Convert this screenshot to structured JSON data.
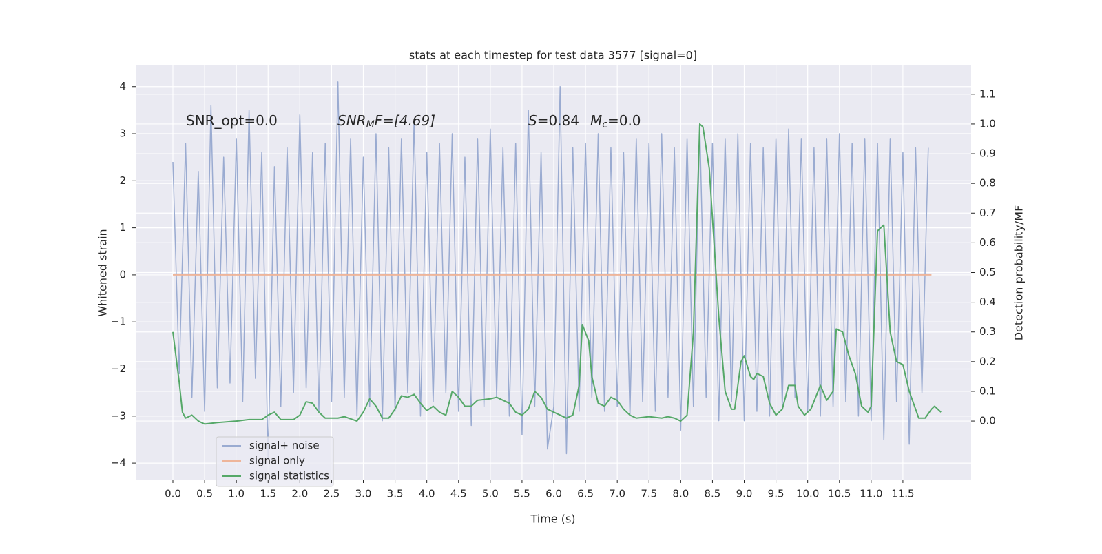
{
  "chart_data": {
    "type": "line",
    "title": "stats at each timestep for test data 3577 [signal=0]",
    "xlabel": "Time (s)",
    "ylabel": "Whitened strain",
    "y2label": "Detection probability/MF",
    "annotations": [
      [
        "SNR_opt=0.0"
      ],
      [
        "SNR",
        "M",
        "F=[4.69]"
      ],
      [
        "S",
        "=0.84",
        "M",
        "c",
        "=0.0"
      ]
    ],
    "xlim": [
      -0.586,
      12.575
    ],
    "ylim": [
      -4.35,
      4.45
    ],
    "y2lim": [
      -0.197,
      1.197
    ],
    "xticks": [
      {
        "value": 0,
        "label": "0.0"
      },
      {
        "value": 0.5,
        "label": "0.5"
      },
      {
        "value": 1,
        "label": "1.0"
      },
      {
        "value": 1.5,
        "label": "1.5"
      },
      {
        "value": 2,
        "label": "2.0"
      },
      {
        "value": 2.5,
        "label": "2.5"
      },
      {
        "value": 3,
        "label": "3.0"
      },
      {
        "value": 3.5,
        "label": "3.5"
      },
      {
        "value": 4,
        "label": "4.0"
      },
      {
        "value": 4.5,
        "label": "4.5"
      },
      {
        "value": 5,
        "label": "5.0"
      },
      {
        "value": 5.5,
        "label": "5.5"
      },
      {
        "value": 6,
        "label": "6.0"
      },
      {
        "value": 6.5,
        "label": "6.5"
      },
      {
        "value": 7,
        "label": "7.0"
      },
      {
        "value": 7.5,
        "label": "7.5"
      },
      {
        "value": 8,
        "label": "8.0"
      },
      {
        "value": 8.5,
        "label": "8.5"
      },
      {
        "value": 9,
        "label": "9.0"
      },
      {
        "value": 9.5,
        "label": "9.5"
      },
      {
        "value": 10,
        "label": "10.0"
      },
      {
        "value": 10.5,
        "label": "10.5"
      },
      {
        "value": 11,
        "label": "11.0"
      },
      {
        "value": 11.5,
        "label": "11.5"
      }
    ],
    "yticks": [
      {
        "value": -4,
        "label": "−4"
      },
      {
        "value": -3,
        "label": "−3"
      },
      {
        "value": -2,
        "label": "−2"
      },
      {
        "value": -1,
        "label": "−1"
      },
      0,
      1,
      2,
      3,
      4
    ],
    "y2ticks": [
      {
        "value": 0,
        "label": "0.0"
      },
      {
        "value": 0.1,
        "label": "0.1"
      },
      {
        "value": 0.2,
        "label": "0.2"
      },
      {
        "value": 0.3,
        "label": "0.3"
      },
      {
        "value": 0.4,
        "label": "0.4"
      },
      {
        "value": 0.5,
        "label": "0.5"
      },
      {
        "value": 0.6,
        "label": "0.6"
      },
      {
        "value": 0.7,
        "label": "0.7"
      },
      {
        "value": 0.8,
        "label": "0.8"
      },
      {
        "value": 0.9,
        "label": "0.9"
      },
      {
        "value": 1,
        "label": "1.0"
      },
      {
        "value": 1.1,
        "label": "1.1"
      }
    ],
    "grid": true,
    "legend": "lower left",
    "series": [
      {
        "name": "signal+ noise",
        "color": "#9aabd1",
        "x": [
          0,
          0.1,
          0.2,
          0.3,
          0.4,
          0.5,
          0.6,
          0.7,
          0.8,
          0.9,
          1,
          1.1,
          1.2,
          1.3,
          1.4,
          1.5,
          1.6,
          1.7,
          1.8,
          1.9,
          2,
          2.1,
          2.2,
          2.3,
          2.4,
          2.5,
          2.6,
          2.7,
          2.8,
          2.9,
          3,
          3.1,
          3.2,
          3.3,
          3.4,
          3.5,
          3.6,
          3.7,
          3.8,
          3.9,
          4,
          4.1,
          4.2,
          4.3,
          4.4,
          4.5,
          4.6,
          4.7,
          4.8,
          4.9,
          5,
          5.1,
          5.2,
          5.3,
          5.4,
          5.5,
          5.6,
          5.7,
          5.8,
          5.9,
          6,
          6.1,
          6.2,
          6.3,
          6.4,
          6.5,
          6.6,
          6.7,
          6.8,
          6.9,
          7,
          7.1,
          7.2,
          7.3,
          7.4,
          7.5,
          7.6,
          7.7,
          7.8,
          7.9,
          8,
          8.1,
          8.2,
          8.3,
          8.4,
          8.5,
          8.6,
          8.7,
          8.8,
          8.9,
          9,
          9.1,
          9.2,
          9.3,
          9.4,
          9.5,
          9.6,
          9.7,
          9.8,
          9.9,
          10,
          10.1,
          10.2,
          10.3,
          10.4,
          10.5,
          10.6,
          10.7,
          10.8,
          10.9,
          11,
          11.1,
          11.2,
          11.3,
          11.4,
          11.5,
          11.6,
          11.7,
          11.8,
          11.9
        ],
        "values": [
          2.4,
          -2.1,
          2.8,
          -2.6,
          2.2,
          -2.9,
          3.6,
          -2.4,
          2.5,
          -2.3,
          2.9,
          -2.7,
          3.5,
          -2.2,
          2.6,
          -3.9,
          2.3,
          -2.8,
          2.7,
          -2.5,
          3.4,
          -2.4,
          2.6,
          -2.9,
          2.8,
          -2.7,
          4.1,
          -2.6,
          2.9,
          -3.0,
          2.5,
          -2.8,
          3.0,
          -3.1,
          2.7,
          -2.9,
          2.9,
          -2.5,
          3.3,
          -3.0,
          2.6,
          -2.7,
          2.8,
          -2.5,
          3.0,
          -2.9,
          2.5,
          -3.2,
          2.9,
          -2.8,
          3.1,
          -2.6,
          2.7,
          -3.0,
          2.8,
          -3.4,
          3.5,
          -2.8,
          2.6,
          -3.7,
          -2.8,
          4.0,
          -3.8,
          2.7,
          -2.9,
          2.8,
          -2.6,
          3.0,
          -2.9,
          2.7,
          -2.8,
          2.6,
          -3.0,
          2.9,
          -2.7,
          2.8,
          -2.9,
          3.0,
          -2.6,
          2.7,
          -3.3,
          2.9,
          -2.8,
          3.2,
          -2.6,
          2.8,
          -3.1,
          2.9,
          -2.7,
          3.0,
          -3.1,
          2.8,
          -2.9,
          2.7,
          -3.0,
          2.9,
          -2.8,
          3.1,
          -2.6,
          2.9,
          -2.9,
          2.7,
          -3.0,
          2.9,
          -2.8,
          3.0,
          -2.7,
          2.8,
          -3.0,
          2.9,
          -3.1,
          2.8,
          -3.5,
          2.9,
          -2.7,
          2.6,
          -3.6,
          2.7,
          -2.5,
          2.7
        ]
      },
      {
        "name": "signal only",
        "color": "#eeb59a",
        "x": [
          0,
          11.95
        ],
        "values": [
          0,
          0
        ]
      },
      {
        "name": "signal statistics",
        "color": "#55a868",
        "axis": "y2",
        "x": [
          0,
          0.1,
          0.15,
          0.2,
          0.3,
          0.4,
          0.5,
          0.7,
          1.0,
          1.2,
          1.4,
          1.5,
          1.6,
          1.7,
          1.9,
          2.0,
          2.1,
          2.2,
          2.3,
          2.4,
          2.6,
          2.7,
          2.9,
          3.0,
          3.1,
          3.2,
          3.3,
          3.4,
          3.5,
          3.6,
          3.7,
          3.8,
          3.9,
          4.0,
          4.1,
          4.2,
          4.3,
          4.4,
          4.5,
          4.6,
          4.7,
          4.8,
          5.0,
          5.1,
          5.3,
          5.4,
          5.5,
          5.6,
          5.7,
          5.8,
          5.9,
          6.0,
          6.1,
          6.2,
          6.3,
          6.4,
          6.45,
          6.55,
          6.6,
          6.7,
          6.8,
          6.9,
          7.0,
          7.1,
          7.2,
          7.3,
          7.5,
          7.7,
          7.8,
          7.9,
          8.0,
          8.1,
          8.2,
          8.3,
          8.35,
          8.45,
          8.6,
          8.7,
          8.8,
          8.85,
          8.95,
          9.0,
          9.1,
          9.15,
          9.2,
          9.3,
          9.4,
          9.5,
          9.6,
          9.7,
          9.8,
          9.85,
          9.95,
          10.05,
          10.2,
          10.3,
          10.4,
          10.45,
          10.55,
          10.65,
          10.75,
          10.85,
          10.95,
          11.0,
          11.1,
          11.2,
          11.3,
          11.4,
          11.5,
          11.6,
          11.7,
          11.75,
          11.85,
          11.95,
          12.0,
          12.1
        ],
        "values": [
          0.3,
          0.13,
          0.03,
          0.01,
          0.02,
          0.0,
          -0.01,
          -0.005,
          0,
          0.005,
          0.005,
          0.02,
          0.03,
          0.005,
          0.005,
          0.02,
          0.065,
          0.06,
          0.03,
          0.01,
          0.01,
          0.015,
          0.0,
          0.03,
          0.075,
          0.05,
          0.01,
          0.01,
          0.04,
          0.085,
          0.08,
          0.09,
          0.06,
          0.035,
          0.05,
          0.03,
          0.02,
          0.1,
          0.08,
          0.05,
          0.05,
          0.07,
          0.075,
          0.08,
          0.06,
          0.03,
          0.02,
          0.04,
          0.1,
          0.08,
          0.04,
          0.03,
          0.02,
          0.01,
          0.02,
          0.12,
          0.325,
          0.27,
          0.15,
          0.06,
          0.05,
          0.08,
          0.07,
          0.04,
          0.02,
          0.01,
          0.015,
          0.01,
          0.015,
          0.01,
          0.0,
          0.02,
          0.3,
          1.0,
          0.99,
          0.85,
          0.35,
          0.1,
          0.04,
          0.04,
          0.2,
          0.22,
          0.15,
          0.14,
          0.16,
          0.15,
          0.06,
          0.02,
          0.04,
          0.12,
          0.12,
          0.05,
          0.02,
          0.04,
          0.12,
          0.07,
          0.1,
          0.31,
          0.3,
          0.22,
          0.16,
          0.05,
          0.03,
          0.05,
          0.64,
          0.66,
          0.3,
          0.2,
          0.19,
          0.1,
          0.04,
          0.01,
          0.01,
          0.04,
          0.05,
          0.03
        ]
      }
    ]
  }
}
